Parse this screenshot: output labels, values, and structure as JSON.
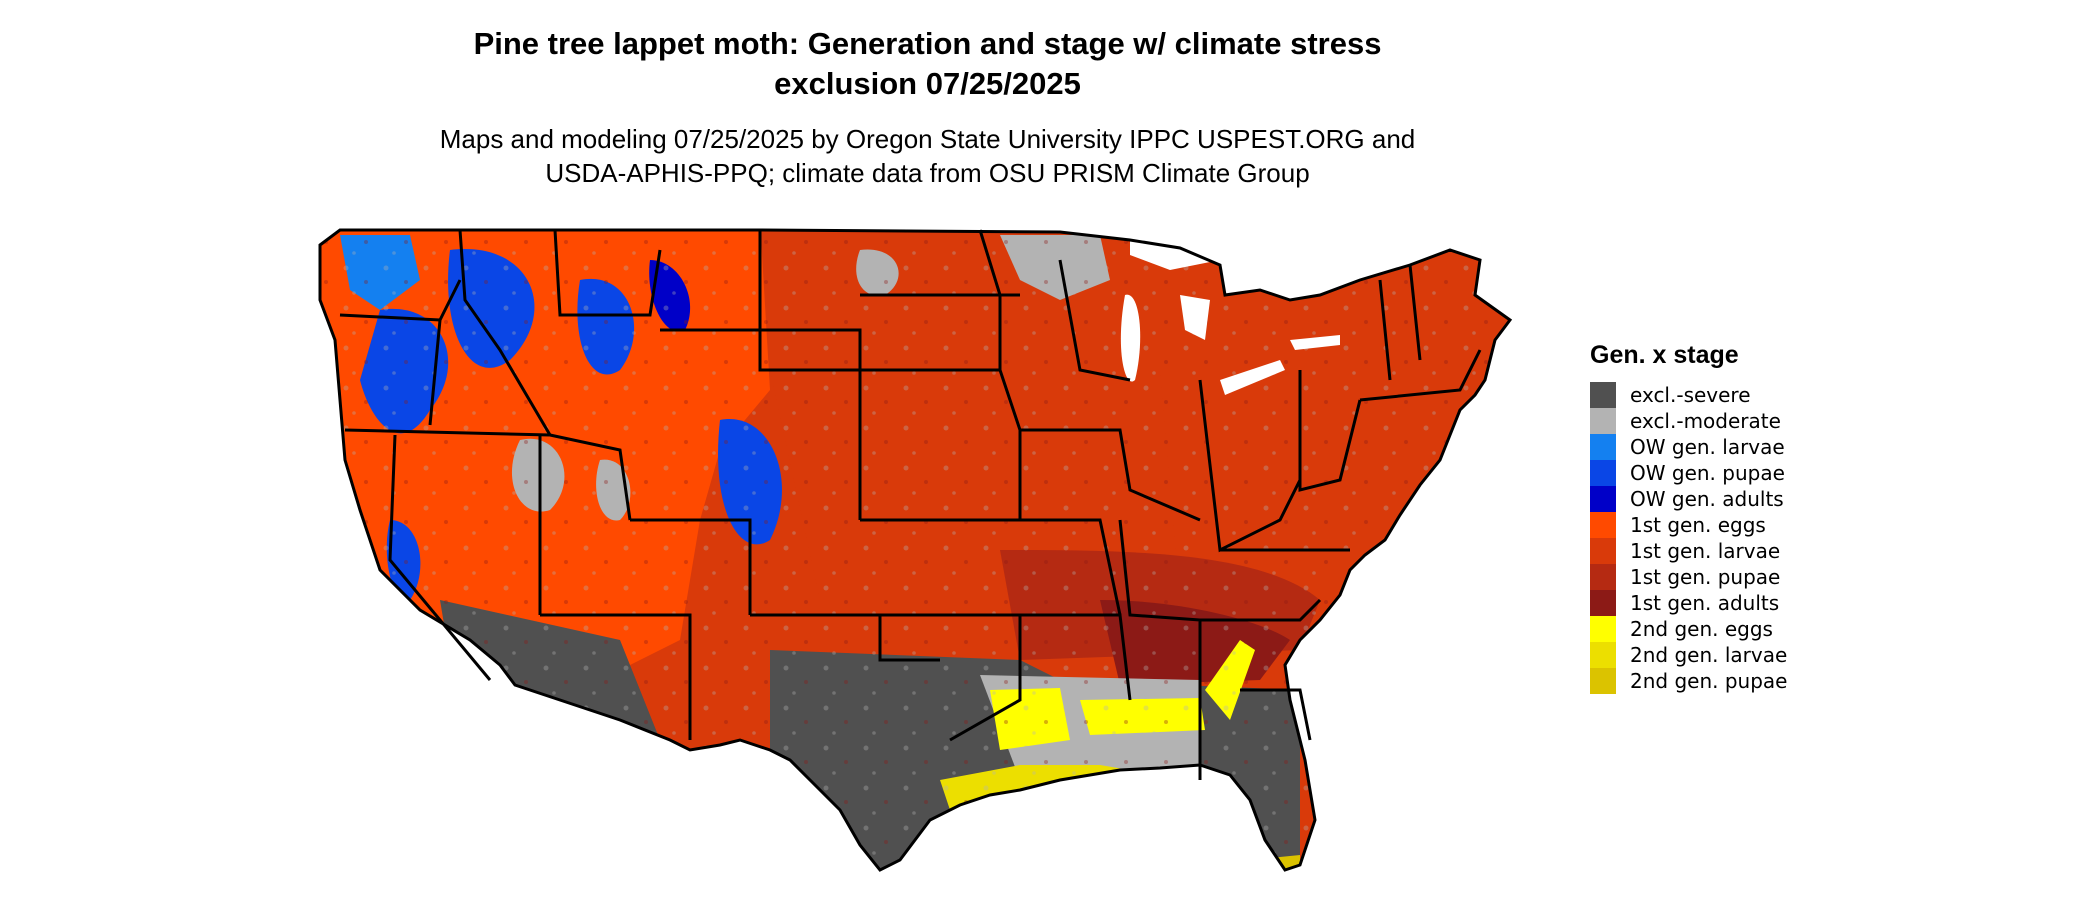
{
  "title_line1": "Pine tree lappet moth: Generation and stage w/ climate stress",
  "title_line2": "exclusion 07/25/2025",
  "subtitle_line1": "Maps and modeling 07/25/2025 by Oregon State University IPPC USPEST.ORG and",
  "subtitle_line2": "USDA-APHIS-PPQ; climate data from OSU PRISM Climate Group",
  "legend": {
    "title": "Gen. x stage",
    "items": [
      {
        "label": "excl.-severe",
        "color": "#505050"
      },
      {
        "label": "excl.-moderate",
        "color": "#b3b3b3"
      },
      {
        "label": "OW gen. larvae",
        "color": "#1480f0"
      },
      {
        "label": "OW gen. pupae",
        "color": "#0a46e6"
      },
      {
        "label": "OW gen. adults",
        "color": "#0000c8"
      },
      {
        "label": "1st gen. eggs",
        "color": "#ff4a00"
      },
      {
        "label": "1st gen. larvae",
        "color": "#d93a0a"
      },
      {
        "label": "1st gen. pupae",
        "color": "#b52a12"
      },
      {
        "label": "1st gen. adults",
        "color": "#8c1a16"
      },
      {
        "label": "2nd gen. eggs",
        "color": "#ffff00"
      },
      {
        "label": "2nd gen. larvae",
        "color": "#ecdf00"
      },
      {
        "label": "2nd gen. pupae",
        "color": "#dbc300"
      }
    ]
  }
}
